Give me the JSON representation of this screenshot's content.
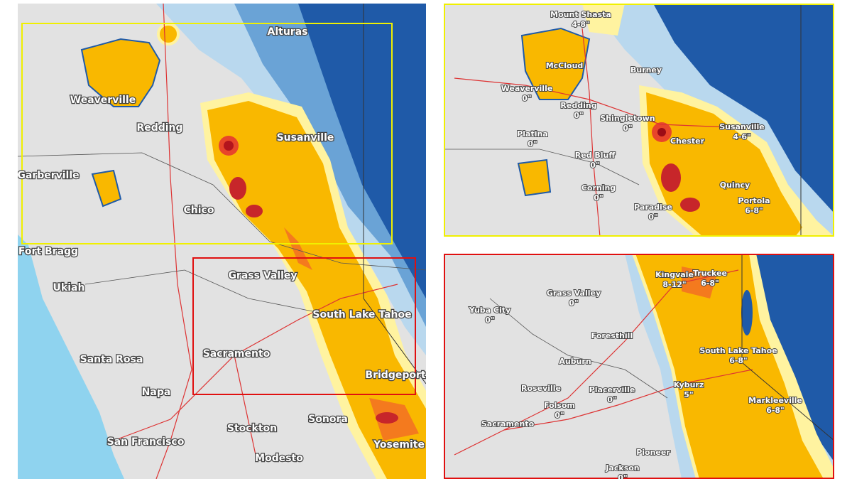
{
  "overview": {
    "cities": [
      "Alturas",
      "Weaverville",
      "Redding",
      "Susanville",
      "Garberville",
      "Chico",
      "Fort Bragg",
      "Grass Valley",
      "Ukiah",
      "South Lake Tahoe",
      "Santa Rosa",
      "Sacramento",
      "Bridgeport",
      "Napa",
      "Stockton",
      "Sonora",
      "San Francisco",
      "Yosemite",
      "Modesto"
    ]
  },
  "north_detail": {
    "cities": [
      {
        "name": "Mount Shasta",
        "amount": "4-8\""
      },
      {
        "name": "McCloud"
      },
      {
        "name": "Burney"
      },
      {
        "name": "Weaverville",
        "amount": "0\""
      },
      {
        "name": "Redding",
        "amount": "0\""
      },
      {
        "name": "Shingletown",
        "amount": "0\""
      },
      {
        "name": "Susanville",
        "amount": "4-6\""
      },
      {
        "name": "Platina",
        "amount": "0\""
      },
      {
        "name": "Chester"
      },
      {
        "name": "Red Bluff",
        "amount": "0\""
      },
      {
        "name": "Quincy"
      },
      {
        "name": "Corning",
        "amount": "0\""
      },
      {
        "name": "Paradise",
        "amount": "0\""
      },
      {
        "name": "Portola",
        "amount": "6-8\""
      }
    ]
  },
  "tahoe_detail": {
    "cities": [
      {
        "name": "Kingvale",
        "amount": "8-12\""
      },
      {
        "name": "Truckee",
        "amount": "6-8\""
      },
      {
        "name": "Grass Valley",
        "amount": "0\""
      },
      {
        "name": "Yuba City",
        "amount": "0\""
      },
      {
        "name": "Foresthill"
      },
      {
        "name": "Auburn"
      },
      {
        "name": "South Lake Tahoe",
        "amount": "6-8\""
      },
      {
        "name": "Roseville"
      },
      {
        "name": "Folsom",
        "amount": "0\""
      },
      {
        "name": "Placerville",
        "amount": "0\""
      },
      {
        "name": "Kyburz",
        "amount": "5\""
      },
      {
        "name": "Markleeville",
        "amount": "6-8\""
      },
      {
        "name": "Sacramento"
      },
      {
        "name": "Pioneer"
      },
      {
        "name": "Jackson",
        "amount": "0\""
      }
    ]
  }
}
